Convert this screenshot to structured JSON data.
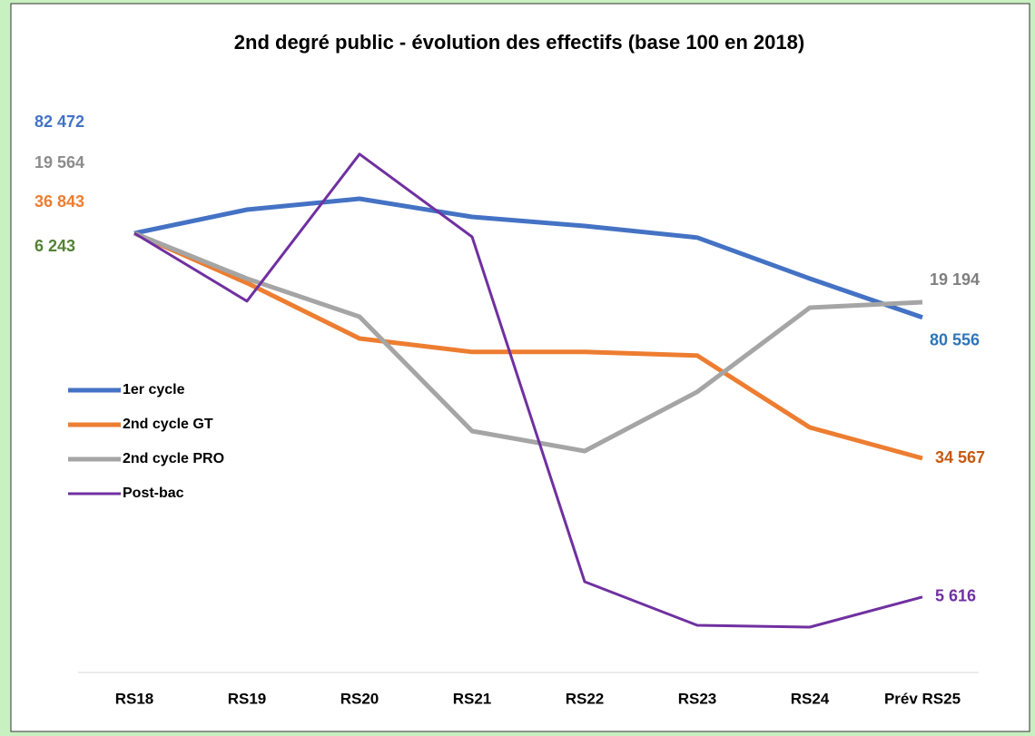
{
  "chart_data": {
    "type": "line",
    "title": "2nd degré public - évolution des effectifs (base 100 en 2018)",
    "categories": [
      "RS18",
      "RS19",
      "RS20",
      "RS21",
      "RS22",
      "RS23",
      "RS24",
      "Prév RS25"
    ],
    "ylim": [
      87.9,
      103.925
    ],
    "series": [
      {
        "name": "1er cycle",
        "color": "#4472c4",
        "values": [
          100,
          100.65,
          100.95,
          100.45,
          100.2,
          99.88,
          98.75,
          97.68
        ],
        "start_label": "82 472",
        "start_label_color": "#4472c4",
        "end_label": "80 556",
        "end_label_color": "#2e75b6"
      },
      {
        "name": "2nd cycle GT",
        "color": "#ed7d31",
        "values": [
          100,
          98.63,
          97.1,
          96.73,
          96.73,
          96.63,
          94.65,
          93.8
        ],
        "start_label": "36 843",
        "start_label_color": "#ed7d31",
        "end_label": "34 567",
        "end_label_color": "#c55a11"
      },
      {
        "name": "2nd cycle PRO",
        "color": "#a5a5a5",
        "values": [
          100,
          98.75,
          97.7,
          94.55,
          94.0,
          95.63,
          97.95,
          98.1
        ],
        "start_label": "19 564",
        "start_label_color": "#8c8c8c",
        "end_label": "19 194",
        "end_label_color": "#7f7f7f"
      },
      {
        "name": "Post-bac",
        "color": "#7030a0",
        "values": [
          100,
          98.13,
          102.18,
          99.9,
          90.4,
          89.2,
          89.15,
          89.98
        ],
        "start_label": "6 243",
        "start_label_color": "#548235",
        "end_label": "5 616",
        "end_label_color": "#7030a0"
      }
    ]
  }
}
